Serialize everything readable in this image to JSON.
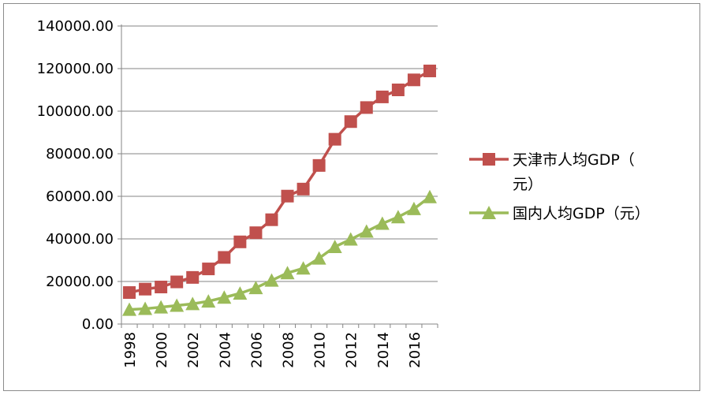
{
  "chart_data": {
    "type": "line",
    "x": [
      1998,
      1999,
      2000,
      2001,
      2002,
      2003,
      2004,
      2005,
      2006,
      2007,
      2008,
      2009,
      2010,
      2011,
      2012,
      2013,
      2014,
      2015,
      2016,
      2017
    ],
    "x_tick_labels": [
      "1998",
      "2000",
      "2002",
      "2004",
      "2006",
      "2008",
      "2010",
      "2012",
      "2014",
      "2016"
    ],
    "y_tick_labels": [
      "0.00",
      "20000.00",
      "40000.00",
      "60000.00",
      "80000.00",
      "100000.00",
      "120000.00",
      "140000.00"
    ],
    "ylim": [
      0,
      140000
    ],
    "grid": true,
    "legend_position": "right",
    "series": [
      {
        "name_line1": "天津市人均GDP（",
        "name_line2": "元）",
        "color": "#c0504d",
        "marker": "square",
        "values": [
          14800,
          16400,
          17400,
          19800,
          21900,
          25900,
          31300,
          38600,
          42900,
          49000,
          60100,
          63400,
          74500,
          86800,
          95100,
          101700,
          106700,
          110000,
          114700,
          118900
        ]
      },
      {
        "name_line1": "国内人均GDP（元）",
        "color": "#9bbb59",
        "marker": "triangle",
        "values": [
          6800,
          7200,
          7900,
          8700,
          9500,
          10700,
          12500,
          14400,
          17000,
          20500,
          24000,
          26200,
          30900,
          36300,
          39800,
          43500,
          47200,
          50300,
          54100,
          59700
        ]
      }
    ]
  }
}
